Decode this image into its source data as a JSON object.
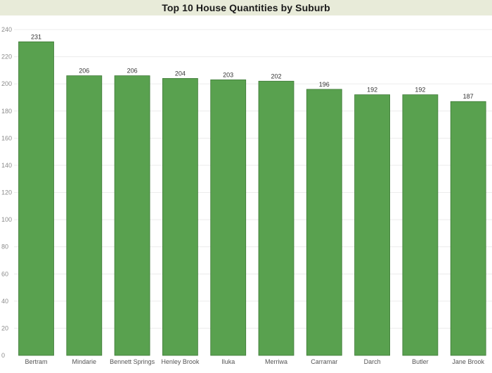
{
  "chart_data": {
    "type": "bar",
    "title": "Top 10 House Quantities by Suburb",
    "xlabel": "",
    "ylabel": "",
    "categories": [
      "Bertram",
      "Mindarie",
      "Bennett Springs",
      "Henley Brook",
      "Iluka",
      "Merriwa",
      "Carramar",
      "Darch",
      "Butler",
      "Jane Brook"
    ],
    "values": [
      231,
      206,
      206,
      204,
      203,
      202,
      196,
      192,
      192,
      187
    ],
    "ylim": [
      0,
      240
    ],
    "yticks": [
      0,
      20,
      40,
      60,
      80,
      100,
      120,
      140,
      160,
      180,
      200,
      220,
      240
    ],
    "grid": true,
    "data_labels": true,
    "legend": "none",
    "colors": {
      "bar_fill": "#59a14f",
      "bar_stroke": "#3f7a38",
      "grid": "#ececec",
      "title_background": "#e8ebd9",
      "tick_text": "#8c8c8c",
      "label_text": "#333333"
    }
  }
}
